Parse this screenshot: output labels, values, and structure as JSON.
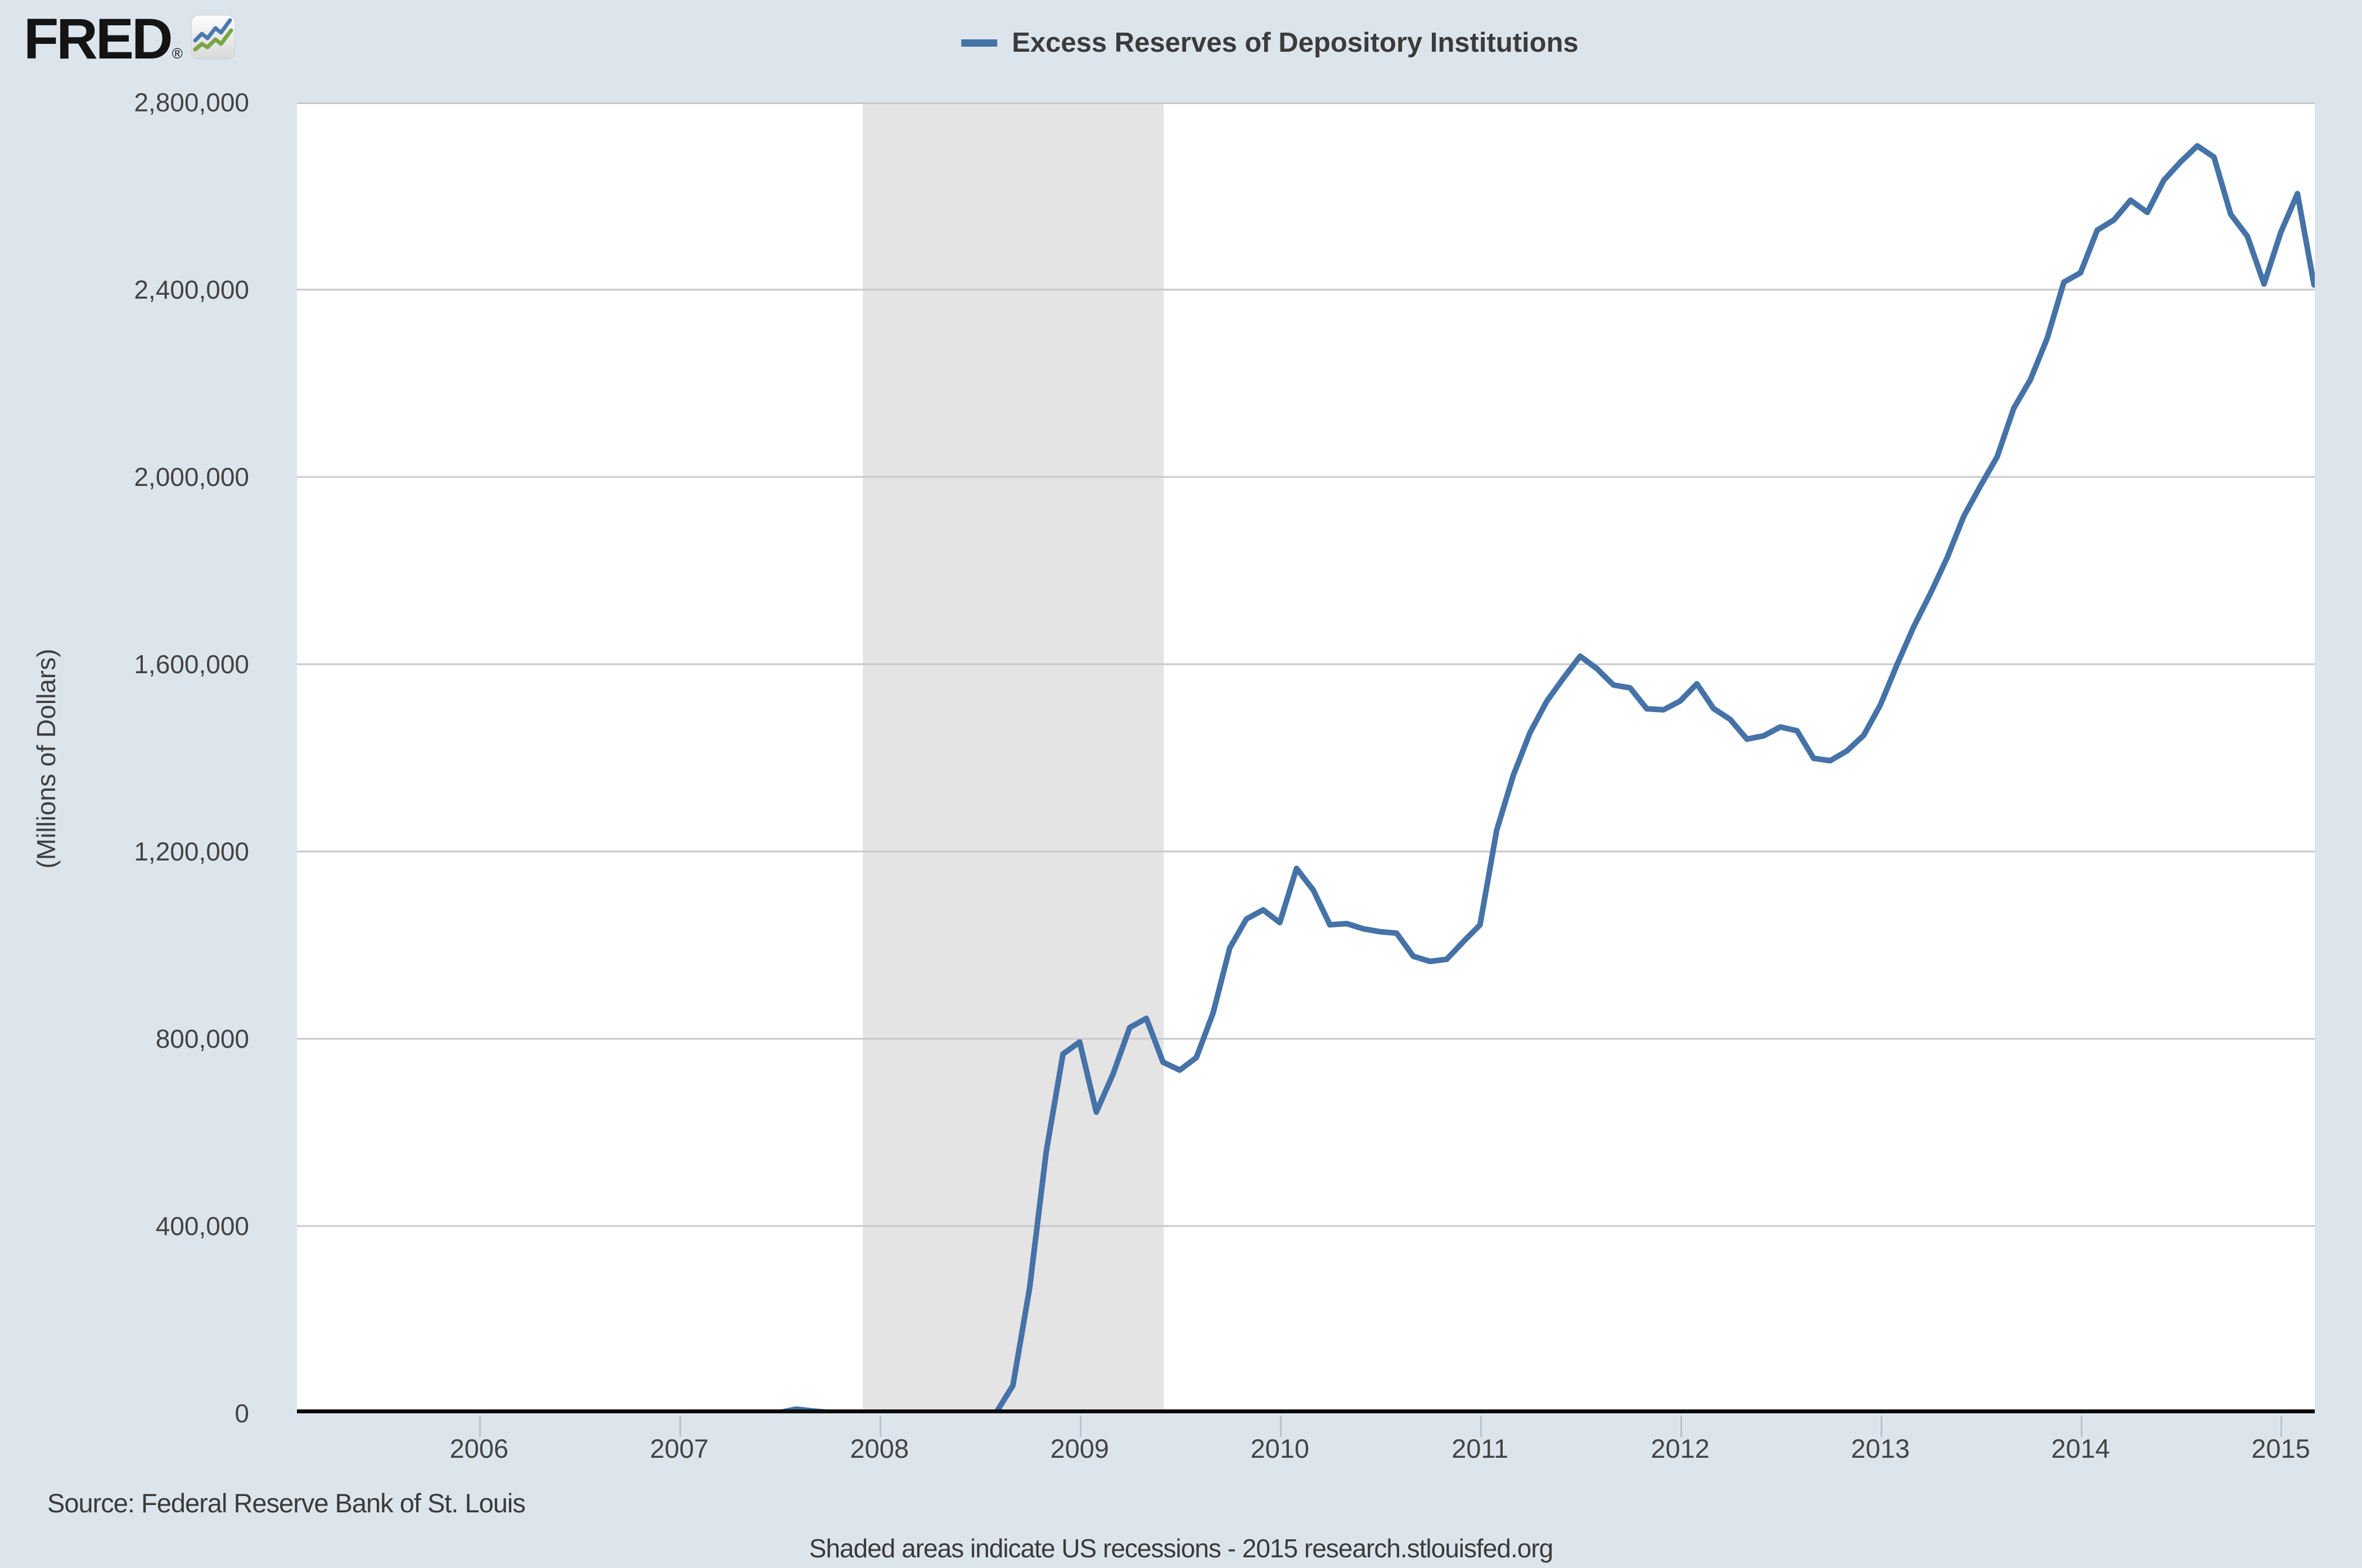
{
  "header": {
    "logo_text": "FRED",
    "registered_mark": "®",
    "logo_icon": "fred-sparkline-icon"
  },
  "legend": {
    "swatch_color": "#4572a7",
    "series_label": "Excess Reserves of Depository Institutions"
  },
  "y_axis": {
    "title": "(Millions of Dollars)",
    "tick_values": [
      0,
      400000,
      800000,
      1200000,
      1600000,
      2000000,
      2400000,
      2800000
    ],
    "tick_labels": [
      "0",
      "400,000",
      "800,000",
      "1,200,000",
      "1,600,000",
      "2,000,000",
      "2,400,000",
      "2,800,000"
    ]
  },
  "x_axis": {
    "tick_labels": [
      "2006",
      "2007",
      "2008",
      "2009",
      "2010",
      "2011",
      "2012",
      "2013",
      "2014",
      "2015"
    ],
    "tick_years": [
      2006,
      2007,
      2008,
      2009,
      2010,
      2011,
      2012,
      2013,
      2014,
      2015
    ]
  },
  "footer": {
    "source": "Source: Federal Reserve Bank of St. Louis",
    "note": "Shaded areas indicate US recessions - 2015 research.stlouisfed.org"
  },
  "colors": {
    "page_background": "#dde5ec",
    "plot_background": "#ffffff",
    "recession_band": "#e4e4e4",
    "gridline": "#c8c8c8",
    "axis_line": "#0b0b0b",
    "tick_mark": "#b5c3d1",
    "label_text": "#444444",
    "line": "#4572a7"
  },
  "chart_data": {
    "type": "line",
    "title": "Excess Reserves of Depository Institutions",
    "ylabel": "(Millions of Dollars)",
    "ylim": [
      0,
      2800000
    ],
    "ytick_step": 400000,
    "grid": true,
    "legend_position": "top-center",
    "x_domain_decimal_years": [
      2005.09,
      2015.17
    ],
    "recession_bands": [
      {
        "start_decimal_year": 2007.917,
        "end_decimal_year": 2009.42
      }
    ],
    "series": [
      {
        "name": "Excess Reserves of Depository Institutions",
        "color": "#4572a7",
        "units": "Millions of Dollars",
        "frequency": "Monthly",
        "observation_start": "2005-02",
        "observation_end": "2015-03",
        "values": [
          1700,
          1600,
          1700,
          1600,
          1800,
          1700,
          1800,
          2000,
          1900,
          1800,
          1900,
          1700,
          1800,
          1700,
          1900,
          1800,
          1900,
          1800,
          1900,
          1700,
          1800,
          1700,
          1900,
          1700,
          1600,
          1500,
          1600,
          1700,
          1800,
          1600,
          9000,
          5000,
          2000,
          1900,
          1800,
          1800,
          1700,
          1800,
          1700,
          1900,
          1900,
          1900,
          1900,
          59500,
          267900,
          559000,
          767300,
          793200,
          643500,
          724400,
          823900,
          843600,
          749900,
          733100,
          760000,
          855300,
          994000,
          1055800,
          1075300,
          1048200,
          1163700,
          1117800,
          1043500,
          1046000,
          1034900,
          1028700,
          1025600,
          976200,
          965300,
          969700,
          1007300,
          1043300,
          1245200,
          1363000,
          1454000,
          1520700,
          1570200,
          1617000,
          1590700,
          1555600,
          1549400,
          1504900,
          1502700,
          1521300,
          1558100,
          1505300,
          1482000,
          1440000,
          1447000,
          1466000,
          1458000,
          1399000,
          1394000,
          1415000,
          1448000,
          1513000,
          1599000,
          1680000,
          1751000,
          1827000,
          1916000,
          1981000,
          2043000,
          2147000,
          2208000,
          2296000,
          2416000,
          2436000,
          2527000,
          2549000,
          2591000,
          2565000,
          2634000,
          2673000,
          2707000,
          2683000,
          2561000,
          2514000,
          2412000,
          2522000,
          2605000,
          2410000
        ]
      }
    ]
  }
}
